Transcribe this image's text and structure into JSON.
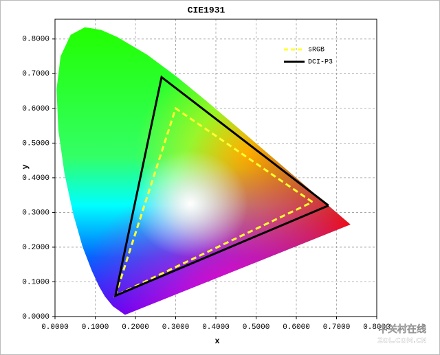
{
  "chart_data": {
    "type": "line",
    "title": "CIE1931",
    "x_label": "x",
    "y_label": "y",
    "xlim": [
      0,
      0.8
    ],
    "ylim": [
      0,
      0.857
    ],
    "xticks": [
      {
        "value": 0,
        "label": "0.0000"
      },
      {
        "value": 0.1,
        "label": "0.1000"
      },
      {
        "value": 0.2,
        "label": "0.2000"
      },
      {
        "value": 0.3,
        "label": "0.3000"
      },
      {
        "value": 0.4,
        "label": "0.4000"
      },
      {
        "value": 0.5,
        "label": "0.5000"
      },
      {
        "value": 0.6,
        "label": "0.6000"
      },
      {
        "value": 0.7,
        "label": "0.7000"
      },
      {
        "value": 0.8,
        "label": "0.8000"
      }
    ],
    "yticks": [
      {
        "value": 0,
        "label": "0.0000"
      },
      {
        "value": 0.1,
        "label": "0.1000"
      },
      {
        "value": 0.2,
        "label": "0.2000"
      },
      {
        "value": 0.3,
        "label": "0.3000"
      },
      {
        "value": 0.4,
        "label": "0.4000"
      },
      {
        "value": 0.5,
        "label": "0.5000"
      },
      {
        "value": 0.6,
        "label": "0.6000"
      },
      {
        "value": 0.7,
        "label": "0.7000"
      },
      {
        "value": 0.8,
        "label": "0.8000"
      }
    ],
    "grid": true,
    "legend": "upper right",
    "locus": {
      "x": [
        0.1741,
        0.144,
        0.1241,
        0.1096,
        0.0913,
        0.0687,
        0.0454,
        0.0235,
        0.0082,
        0.0039,
        0.0139,
        0.0389,
        0.0743,
        0.1142,
        0.1547,
        0.2296,
        0.3016,
        0.3731,
        0.4441,
        0.5125,
        0.5752,
        0.627,
        0.6915,
        0.719,
        0.7347
      ],
      "y": [
        0.005,
        0.0297,
        0.0578,
        0.0868,
        0.1327,
        0.2007,
        0.295,
        0.4127,
        0.5384,
        0.6548,
        0.7502,
        0.812,
        0.8338,
        0.8262,
        0.8059,
        0.7543,
        0.6923,
        0.6245,
        0.5547,
        0.4866,
        0.4242,
        0.3725,
        0.3083,
        0.2809,
        0.2653
      ]
    },
    "series": [
      {
        "name": "sRGB",
        "color": "#ffff33",
        "dashed": true,
        "x": [
          0.64,
          0.3,
          0.15,
          0.64
        ],
        "y": [
          0.33,
          0.6,
          0.06,
          0.33
        ]
      },
      {
        "name": "DCI-P3",
        "color": "#000000",
        "dashed": false,
        "x": [
          0.68,
          0.265,
          0.15,
          0.68
        ],
        "y": [
          0.32,
          0.69,
          0.06,
          0.32
        ]
      }
    ]
  },
  "watermark": {
    "name": "中关村在线",
    "url": "ZOL.COM.CN"
  }
}
